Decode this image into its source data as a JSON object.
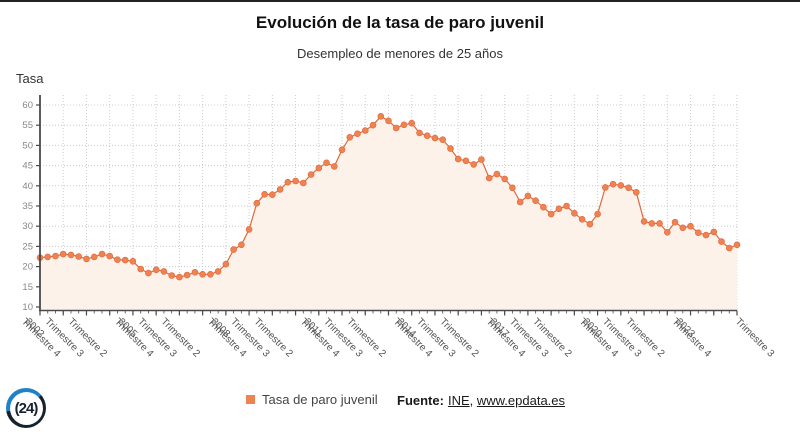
{
  "page": {
    "title": "Evolución de la tasa de paro juvenil",
    "subtitle": "Desempleo de menores de 25 años",
    "y_axis_title": "Tasa"
  },
  "legend": {
    "label": "Tasa de paro juvenil"
  },
  "source": {
    "prefix": "Fuente:",
    "link_ine": "INE",
    "separator": ", ",
    "link_epdata": "www.epdata.es"
  },
  "logo": {
    "paren_open": "(",
    "text": "24",
    "paren_close": ")"
  },
  "colors": {
    "point": "#ec8351",
    "line": "#e2673c",
    "area_fill": "#fdf2ea",
    "grid": "#cccccc",
    "axis": "#4a4a4a",
    "y_tick_label": "#888888",
    "x_tick_label": "#555555",
    "logo_blue": "#1e82c6",
    "logo_dark": "#16222e"
  },
  "chart_data": {
    "type": "line",
    "title": "Evolución de la tasa de paro juvenil",
    "subtitle": "Desempleo de menores de 25 años",
    "xlabel": "",
    "ylabel": "Tasa",
    "ylim": [
      10,
      60
    ],
    "y_ticks": [
      10,
      15,
      20,
      25,
      30,
      35,
      40,
      45,
      50,
      55,
      60
    ],
    "grid": true,
    "legend_position": "bottom",
    "marker": "circle",
    "x_tick_every": 3,
    "x_tick_labels": [
      "2002",
      "Trimestre 4",
      "Trimestre 3",
      "Trimestre 2",
      "2005",
      "Trimestre 4",
      "Trimestre 3",
      "Trimestre 2",
      "2008",
      "Trimestre 4",
      "Trimestre 3",
      "Trimestre 2",
      "2011",
      "Trimestre 4",
      "Trimestre 3",
      "Trimestre 2",
      "2014",
      "Trimestre 4",
      "Trimestre 3",
      "Trimestre 2",
      "2017",
      "Trimestre 4",
      "Trimestre 3",
      "Trimestre 2",
      "2020",
      "Trimestre 4",
      "Trimestre 3",
      "Trimestre 2",
      "2023",
      "Trimestre 4",
      "Trimestre 3"
    ],
    "series": [
      {
        "name": "Tasa de paro juvenil",
        "start": "2002 Trimestre 1",
        "end": "2024 Trimestre 3",
        "frequency": "trimestral",
        "values": [
          22.2,
          22.4,
          22.6,
          23.1,
          22.9,
          22.5,
          21.9,
          22.4,
          23.1,
          22.6,
          21.7,
          21.6,
          21.3,
          19.4,
          18.4,
          19.2,
          18.8,
          17.8,
          17.4,
          17.9,
          18.6,
          18.1,
          18.1,
          18.8,
          20.6,
          24.2,
          25.4,
          29.2,
          35.7,
          37.9,
          37.8,
          39.1,
          40.9,
          41.2,
          40.7,
          42.8,
          44.4,
          45.7,
          44.8,
          48.9,
          52.0,
          52.9,
          53.7,
          55.0,
          57.2,
          56.1,
          54.3,
          55.1,
          55.5,
          53.1,
          52.4,
          51.8,
          51.4,
          49.2,
          46.6,
          46.2,
          45.3,
          46.5,
          41.9,
          42.9,
          41.7,
          39.5,
          36.0,
          37.5,
          36.3,
          34.7,
          33.0,
          34.3,
          35.0,
          33.2,
          31.7,
          30.5,
          33.0,
          39.6,
          40.4,
          40.1,
          39.5,
          38.4,
          31.2,
          30.7,
          30.7,
          28.5,
          31.0,
          29.6,
          30.0,
          28.4,
          27.8,
          28.6,
          26.2,
          24.6,
          25.4
        ]
      }
    ]
  }
}
